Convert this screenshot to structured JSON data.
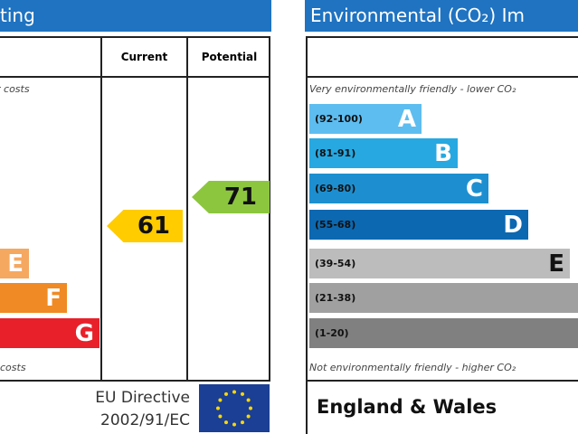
{
  "energy_panel": {
    "header": "ting",
    "columns": [
      "Current",
      "Potential"
    ],
    "top_note": "r costs",
    "bottom_note": "costs",
    "bands": [
      {
        "letter": "E"
      },
      {
        "letter": "F"
      },
      {
        "letter": "G"
      }
    ],
    "current": 61,
    "potential": 71,
    "directive": [
      "EU Directive",
      "2002/91/EC"
    ]
  },
  "environmental_panel": {
    "header": "Environmental (CO₂) Im",
    "top_note": "Very environmentally friendly - lower CO₂",
    "bottom_note": "Not environmentally friendly - higher CO₂",
    "footer": "England & Wales",
    "bands": [
      {
        "range": "(92-100)",
        "letter": "A"
      },
      {
        "range": "(81-91)",
        "letter": "B"
      },
      {
        "range": "(69-80)",
        "letter": "C"
      },
      {
        "range": "(55-68)",
        "letter": "D"
      },
      {
        "range": "(39-54)",
        "letter": "E"
      },
      {
        "range": "(21-38)",
        "letter": null
      },
      {
        "range": "(1-20)",
        "letter": null
      }
    ]
  }
}
